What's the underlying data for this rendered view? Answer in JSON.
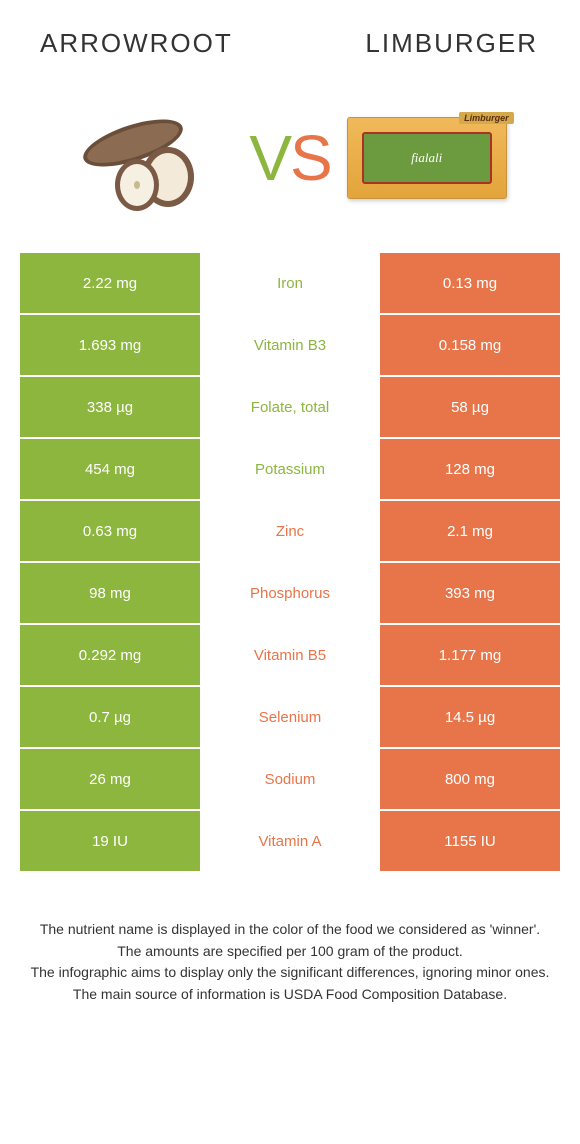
{
  "titles": {
    "left": "ARROWROOT",
    "right": "LIMBURGER"
  },
  "vs": {
    "v": "V",
    "s": "S"
  },
  "colors": {
    "green": "#8cb63e",
    "orange": "#e8754a",
    "text": "#333333",
    "bg": "#ffffff"
  },
  "limburger": {
    "brand": "fialali",
    "banner": "Limburger"
  },
  "rows": [
    {
      "left": "2.22 mg",
      "name": "Iron",
      "winner": "green",
      "right": "0.13 mg"
    },
    {
      "left": "1.693 mg",
      "name": "Vitamin B3",
      "winner": "green",
      "right": "0.158 mg"
    },
    {
      "left": "338 µg",
      "name": "Folate, total",
      "winner": "green",
      "right": "58 µg"
    },
    {
      "left": "454 mg",
      "name": "Potassium",
      "winner": "green",
      "right": "128 mg"
    },
    {
      "left": "0.63 mg",
      "name": "Zinc",
      "winner": "orange",
      "right": "2.1 mg"
    },
    {
      "left": "98 mg",
      "name": "Phosphorus",
      "winner": "orange",
      "right": "393 mg"
    },
    {
      "left": "0.292 mg",
      "name": "Vitamin B5",
      "winner": "orange",
      "right": "1.177 mg"
    },
    {
      "left": "0.7 µg",
      "name": "Selenium",
      "winner": "orange",
      "right": "14.5 µg"
    },
    {
      "left": "26 mg",
      "name": "Sodium",
      "winner": "orange",
      "right": "800 mg"
    },
    {
      "left": "19 IU",
      "name": "Vitamin A",
      "winner": "orange",
      "right": "1155 IU"
    }
  ],
  "footer": {
    "l1": "The nutrient name is displayed in the color of the food we considered as 'winner'.",
    "l2": "The amounts are specified per 100 gram of the product.",
    "l3": "The infographic aims to display only the significant differences, ignoring minor ones.",
    "l4": "The main source of information is USDA Food Composition Database."
  }
}
